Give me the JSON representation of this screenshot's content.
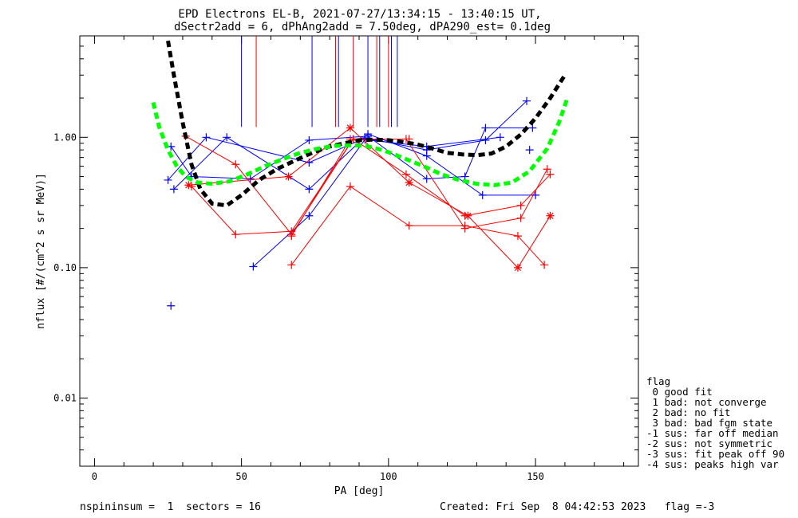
{
  "header": {
    "title_line1": "EPD Electrons EL-B, 2021-07-27/13:34:15 - 13:40:15 UT,",
    "title_line2": "dSectr2add = 6, dPhAng2add = 7.50deg, dPA290_est=   0.1deg"
  },
  "footer": {
    "left": "nspininsum =  1  sectors = 16",
    "right": "Created: Fri Sep  8 04:42:53 2023   flag =-3"
  },
  "legend": {
    "title": "flag",
    "items": [
      " 0 good fit",
      " 1 bad: not converge",
      " 2 bad: no fit",
      " 3 bad: bad fgm state",
      "-1 sus: far off median",
      "-2 sus: not symmetric",
      "-3 sus: fit peak off 90",
      "-4 sus: peaks high var"
    ]
  },
  "chart_data": {
    "type": "line",
    "title": "EPD Electrons EL-B, 2021-07-27/13:34:15 - 13:40:15 UT,",
    "subtitle": "dSectr2add = 6, dPhAng2add = 7.50deg, dPA290_est=   0.1deg",
    "xlabel": "PA [deg]",
    "ylabel": "nflux [#/(cm^2 s sr MeV)]",
    "xlim": [
      -5,
      185
    ],
    "ylim": [
      0.003,
      6.0
    ],
    "y_log": true,
    "x_ticks": [
      0,
      50,
      100,
      150
    ],
    "x_tick_labels": [
      "0",
      "50",
      "100",
      "150"
    ],
    "y_ticks": [
      0.01,
      0.1,
      1.0
    ],
    "y_tick_labels": [
      "0.01",
      "0.10",
      "1.00"
    ],
    "colors": {
      "blue": "#0000ff",
      "red": "#ff0000",
      "black": "#000000",
      "green": "#00ff00"
    },
    "series": [
      {
        "color": "blue",
        "marker": "plus",
        "points": [
          [
            26,
            0.85
          ],
          [
            33,
            0.5
          ],
          [
            53,
            0.48
          ],
          [
            73,
            0.95
          ],
          [
            93,
            1.02
          ],
          [
            113,
            0.48
          ],
          [
            126,
            0.5
          ],
          [
            133,
            1.18
          ],
          [
            149,
            1.18
          ]
        ]
      },
      {
        "color": "blue",
        "marker": "plus",
        "points": [
          [
            25,
            0.47
          ],
          [
            38,
            1.0
          ],
          [
            73,
            0.64
          ],
          [
            92,
            0.99
          ],
          [
            113,
            0.8
          ],
          [
            133,
            0.95
          ],
          [
            147,
            1.9
          ]
        ]
      },
      {
        "color": "blue",
        "marker": "plus",
        "points": [
          [
            27,
            0.4
          ],
          [
            45,
            1.0
          ],
          [
            73,
            0.4
          ],
          [
            93,
            1.06
          ],
          [
            113,
            0.72
          ],
          [
            132,
            0.36
          ],
          [
            150,
            0.36
          ]
        ]
      },
      {
        "color": "blue",
        "marker": "plus",
        "points": [
          [
            54,
            0.102
          ],
          [
            73,
            0.25
          ],
          [
            92,
            0.96
          ],
          [
            113,
            0.85
          ],
          [
            138,
            1.0
          ]
        ]
      },
      {
        "color": "blue",
        "marker": "plus",
        "points": [
          [
            26,
            0.051
          ]
        ]
      },
      {
        "color": "blue",
        "marker": "plus",
        "points": [
          [
            148,
            0.8
          ]
        ]
      },
      {
        "color": "red",
        "marker": "plus",
        "points": [
          [
            31,
            1.02
          ],
          [
            48,
            0.62
          ],
          [
            67,
            0.18
          ],
          [
            88,
            0.97
          ],
          [
            106,
            0.52
          ],
          [
            126,
            0.25
          ],
          [
            145,
            0.3
          ],
          [
            155,
            0.52
          ]
        ]
      },
      {
        "color": "red",
        "marker": "plus",
        "points": [
          [
            33,
            0.42
          ],
          [
            48,
            0.18
          ],
          [
            67,
            0.19
          ],
          [
            88,
            0.97
          ],
          [
            106,
            0.97
          ],
          [
            126,
            0.2
          ],
          [
            145,
            0.24
          ],
          [
            154,
            0.57
          ]
        ]
      },
      {
        "color": "red",
        "marker": "star",
        "points": [
          [
            32,
            0.43
          ],
          [
            66,
            0.5
          ],
          [
            87,
            1.18
          ],
          [
            107,
            0.45
          ],
          [
            127,
            0.25
          ],
          [
            144,
            0.1
          ],
          [
            155,
            0.25
          ]
        ]
      },
      {
        "color": "red",
        "marker": "plus",
        "points": [
          [
            67,
            0.105
          ],
          [
            87,
            0.42
          ],
          [
            107,
            0.21
          ],
          [
            126,
            0.21
          ],
          [
            144,
            0.175
          ],
          [
            153,
            0.105
          ]
        ]
      },
      {
        "color": "red",
        "marker": "plus",
        "points": [
          [
            67,
            0.175
          ],
          [
            87,
            0.97
          ],
          [
            107,
            0.97
          ]
        ]
      },
      {
        "color": "black",
        "style": "dashed-thick",
        "points": [
          [
            25,
            5.5
          ],
          [
            27,
            3.0
          ],
          [
            30,
            1.3
          ],
          [
            33,
            0.62
          ],
          [
            36,
            0.4
          ],
          [
            40,
            0.31
          ],
          [
            45,
            0.3
          ],
          [
            50,
            0.36
          ],
          [
            56,
            0.47
          ],
          [
            62,
            0.57
          ],
          [
            68,
            0.66
          ],
          [
            74,
            0.76
          ],
          [
            80,
            0.85
          ],
          [
            86,
            0.91
          ],
          [
            90,
            0.95
          ],
          [
            95,
            0.96
          ],
          [
            100,
            0.95
          ],
          [
            105,
            0.92
          ],
          [
            110,
            0.88
          ],
          [
            115,
            0.82
          ],
          [
            120,
            0.76
          ],
          [
            125,
            0.74
          ],
          [
            130,
            0.73
          ],
          [
            135,
            0.75
          ],
          [
            140,
            0.85
          ],
          [
            145,
            1.05
          ],
          [
            150,
            1.4
          ],
          [
            155,
            2.0
          ],
          [
            160,
            3.0
          ]
        ]
      },
      {
        "color": "green",
        "style": "dashed-thick",
        "points": [
          [
            20,
            1.85
          ],
          [
            22,
            1.2
          ],
          [
            25,
            0.8
          ],
          [
            28,
            0.6
          ],
          [
            31,
            0.5
          ],
          [
            35,
            0.45
          ],
          [
            40,
            0.44
          ],
          [
            46,
            0.46
          ],
          [
            52,
            0.52
          ],
          [
            58,
            0.6
          ],
          [
            64,
            0.68
          ],
          [
            70,
            0.76
          ],
          [
            76,
            0.82
          ],
          [
            82,
            0.86
          ],
          [
            88,
            0.87
          ],
          [
            92,
            0.86
          ],
          [
            96,
            0.82
          ],
          [
            100,
            0.77
          ],
          [
            106,
            0.68
          ],
          [
            112,
            0.6
          ],
          [
            118,
            0.52
          ],
          [
            124,
            0.47
          ],
          [
            130,
            0.44
          ],
          [
            136,
            0.43
          ],
          [
            142,
            0.45
          ],
          [
            148,
            0.55
          ],
          [
            154,
            0.82
          ],
          [
            158,
            1.3
          ],
          [
            161,
            2.05
          ]
        ]
      }
    ],
    "vertical_marks": [
      {
        "color": "blue",
        "x": 50,
        "y_bottom": 1.2
      },
      {
        "color": "red",
        "x": 55,
        "y_bottom": 1.2
      },
      {
        "color": "blue",
        "x": 74,
        "y_bottom": 1.2
      },
      {
        "color": "red",
        "x": 82,
        "y_bottom": 1.2
      },
      {
        "color": "blue",
        "x": 83,
        "y_bottom": 1.2
      },
      {
        "color": "red",
        "x": 88,
        "y_bottom": 1.2
      },
      {
        "color": "blue",
        "x": 93,
        "y_bottom": 1.2
      },
      {
        "color": "red",
        "x": 96,
        "y_bottom": 1.2
      },
      {
        "color": "blue",
        "x": 97,
        "y_bottom": 1.2
      },
      {
        "color": "red",
        "x": 100,
        "y_bottom": 1.2
      },
      {
        "color": "blue",
        "x": 101,
        "y_bottom": 1.2
      },
      {
        "color": "blue",
        "x": 103,
        "y_bottom": 1.2
      }
    ]
  }
}
